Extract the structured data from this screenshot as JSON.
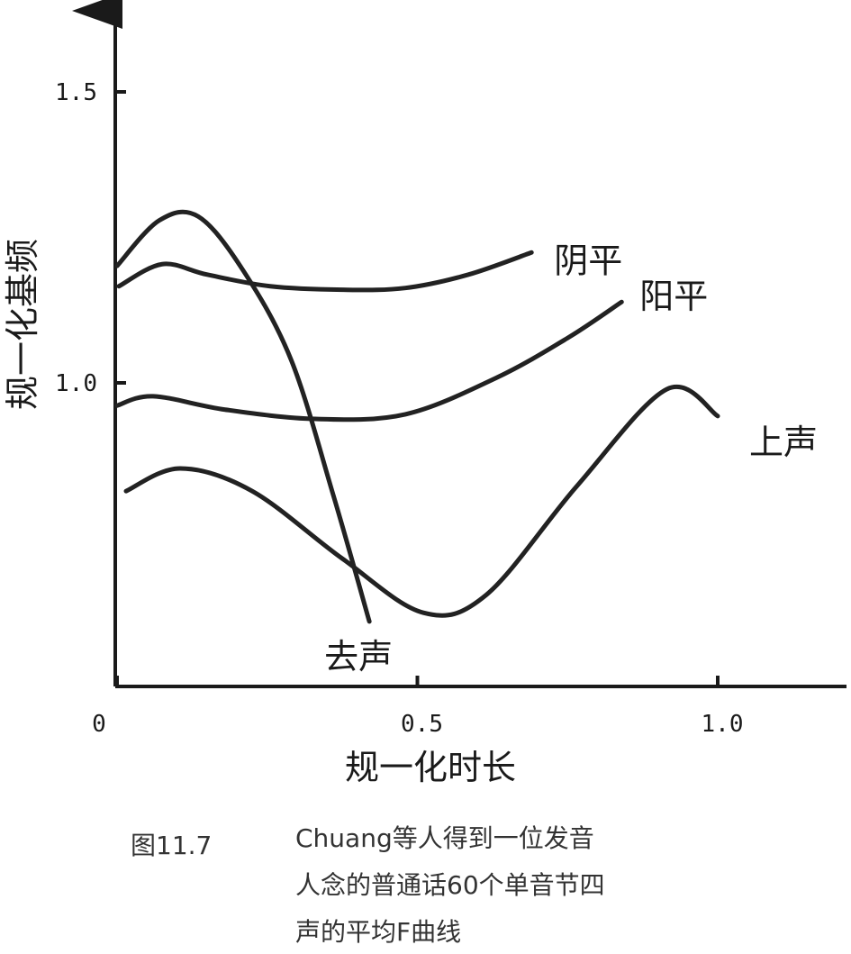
{
  "chart_data": {
    "type": "line",
    "ylabel": "规一化基频",
    "xlabel": "规一化时长",
    "caption_number": "图11.7",
    "caption_lines": [
      "Chuang等人得到一位发音",
      "人念的普通话60个单音节四",
      "声的平均F曲线"
    ],
    "xlim": [
      0,
      1.21
    ],
    "ylim": [
      0.48,
      1.64
    ],
    "xticks": [
      0,
      0.5,
      {
        "value": 1,
        "label": "1.0"
      }
    ],
    "yticks": [
      {
        "value": 1,
        "label": "1.0"
      },
      1.5
    ],
    "grid": false,
    "series": [
      {
        "name": "阴平",
        "color": "#222222",
        "x": [
          0.003,
          0.075,
          0.15,
          0.255,
          0.375,
          0.48,
          0.585,
          0.69
        ],
        "values": [
          1.166,
          1.204,
          1.186,
          1.166,
          1.16,
          1.163,
          1.186,
          1.224
        ]
      },
      {
        "name": "阳平",
        "color": "#222222",
        "x": [
          0,
          0.06,
          0.18,
          0.33,
          0.48,
          0.63,
          0.75,
          0.84
        ],
        "values": [
          0.961,
          0.977,
          0.954,
          0.938,
          0.946,
          1.008,
          1.077,
          1.139
        ]
      },
      {
        "name": "上声",
        "color": "#222222",
        "x": [
          0.015,
          0.105,
          0.225,
          0.375,
          0.51,
          0.615,
          0.765,
          0.915,
          1.0
        ],
        "values": [
          0.814,
          0.853,
          0.814,
          0.698,
          0.605,
          0.636,
          0.822,
          0.989,
          0.943
        ]
      },
      {
        "name": "去声",
        "color": "#222222",
        "x": [
          0,
          0.07,
          0.135,
          0.21,
          0.29,
          0.36,
          0.42
        ],
        "values": [
          1.201,
          1.279,
          1.286,
          1.193,
          1.039,
          0.807,
          0.59
        ]
      }
    ]
  }
}
